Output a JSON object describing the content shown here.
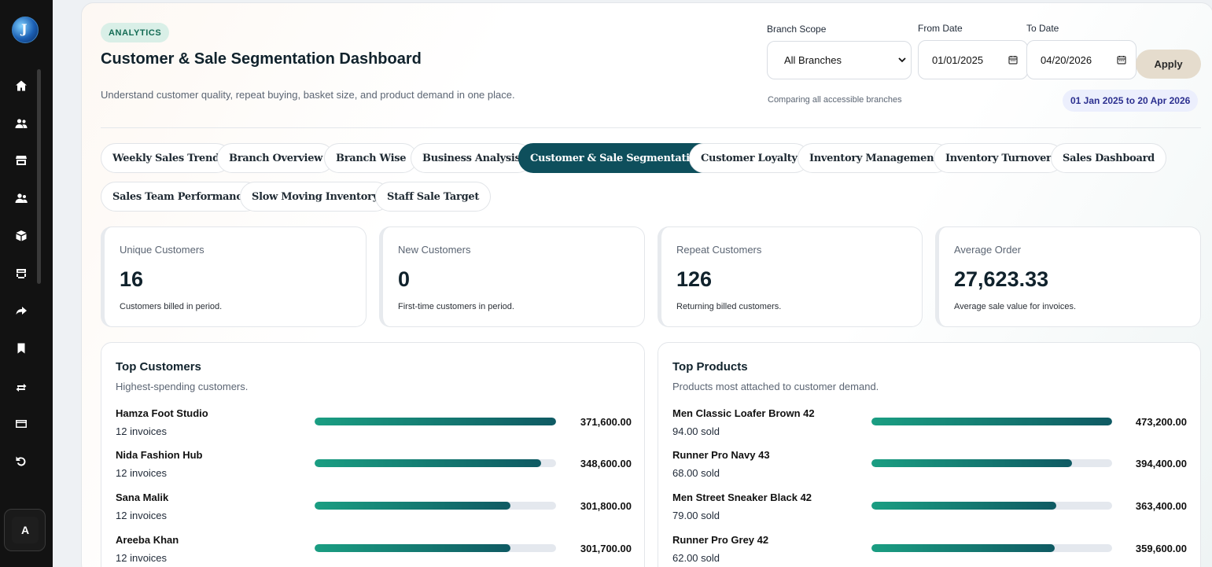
{
  "sidebar": {
    "logo_letter": "J",
    "nav_icons": [
      "home-icon",
      "users-icon",
      "store-icon",
      "team-icon",
      "box-icon",
      "shop-icon",
      "forward-icon",
      "bookmark-icon",
      "transfer-icon",
      "card-icon",
      "undo-icon"
    ],
    "avatar_initial": "A"
  },
  "header": {
    "badge": "ANALYTICS",
    "title": "Customer & Sale Segmentation Dashboard",
    "subtitle": "Understand customer quality, repeat buying, basket size, and product demand in one place."
  },
  "filters": {
    "branch_label": "Branch Scope",
    "branch_value": "All Branches",
    "from_label": "From Date",
    "from_value": "01/01/2025",
    "to_label": "To Date",
    "to_value": "04/20/2026",
    "apply_label": "Apply",
    "compare_note": "Comparing all accessible branches",
    "range_text": "01 Jan 2025 to 20 Apr 2026"
  },
  "tabs": [
    {
      "label": "Weekly Sales Trend",
      "active": false
    },
    {
      "label": "Branch Overview",
      "active": false
    },
    {
      "label": "Branch Wise",
      "active": false
    },
    {
      "label": "Business Analysis",
      "active": false
    },
    {
      "label": "Customer & Sale Segmentation",
      "active": true
    },
    {
      "label": "Customer Loyalty",
      "active": false
    },
    {
      "label": "Inventory Management",
      "active": false
    },
    {
      "label": "Inventory Turnover",
      "active": false
    },
    {
      "label": "Sales Dashboard",
      "active": false
    },
    {
      "label": "Sales Team Performance",
      "active": false
    },
    {
      "label": "Slow Moving Inventory",
      "active": false
    },
    {
      "label": "Staff Sale Target",
      "active": false
    }
  ],
  "kpis": [
    {
      "label": "Unique Customers",
      "value": "16",
      "note": "Customers billed in period."
    },
    {
      "label": "New Customers",
      "value": "0",
      "note": "First-time customers in period."
    },
    {
      "label": "Repeat Customers",
      "value": "126",
      "note": "Returning billed customers."
    },
    {
      "label": "Average Order",
      "value": "27,623.33",
      "note": "Average sale value for invoices."
    }
  ],
  "top_customers": {
    "title": "Top Customers",
    "subtitle": "Highest-spending customers.",
    "rows": [
      {
        "name": "Hamza Foot Studio",
        "meta": "12 invoices",
        "amount": "371,600.00",
        "share": 1.0
      },
      {
        "name": "Nida Fashion Hub",
        "meta": "12 invoices",
        "amount": "348,600.00",
        "share": 0.938
      },
      {
        "name": "Sana Malik",
        "meta": "12 invoices",
        "amount": "301,800.00",
        "share": 0.812
      },
      {
        "name": "Areeba Khan",
        "meta": "12 invoices",
        "amount": "301,700.00",
        "share": 0.812
      }
    ]
  },
  "top_products": {
    "title": "Top Products",
    "subtitle": "Products most attached to customer demand.",
    "rows": [
      {
        "name": "Men Classic Loafer Brown 42",
        "meta": "94.00 sold",
        "amount": "473,200.00",
        "share": 1.0
      },
      {
        "name": "Runner Pro Navy 43",
        "meta": "68.00 sold",
        "amount": "394,400.00",
        "share": 0.833
      },
      {
        "name": "Men Street Sneaker Black 42",
        "meta": "79.00 sold",
        "amount": "363,400.00",
        "share": 0.768
      },
      {
        "name": "Runner Pro Grey 42",
        "meta": "62.00 sold",
        "amount": "359,600.00",
        "share": 0.76
      }
    ]
  },
  "colors": {
    "accent": "#0e4f5c",
    "bar_start": "#1a9e82",
    "bar_end": "#0f5a63",
    "badge_bg": "#d9efe7",
    "apply_bg": "#e5dccd"
  }
}
